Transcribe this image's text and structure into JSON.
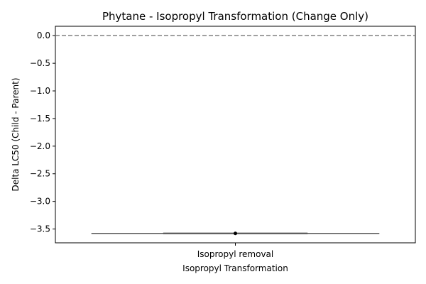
{
  "chart_data": {
    "type": "box",
    "title": "Phytane - Isopropyl Transformation (Change Only)",
    "xlabel": "Isopropyl Transformation",
    "ylabel": "Delta LC50 (Child - Parent)",
    "categories": [
      "Isopropyl removal"
    ],
    "y_ticks": [
      0.0,
      -0.5,
      -1.0,
      -1.5,
      -2.0,
      -2.5,
      -3.0,
      -3.5
    ],
    "y_tick_labels": [
      "0.0",
      "−0.5",
      "−1.0",
      "−1.5",
      "−2.0",
      "−2.5",
      "−3.0",
      "−3.5"
    ],
    "ylim": [
      -3.75,
      0.17
    ],
    "reference_line": {
      "y": 0.0,
      "style": "dashed",
      "color": "#808080"
    },
    "series": [
      {
        "category": "Isopropyl removal",
        "min": -3.58,
        "q1": -3.58,
        "median": -3.58,
        "q3": -3.58,
        "max": -3.58,
        "points": [
          -3.58
        ]
      }
    ],
    "box_color": "#595959",
    "point_color": "#000000",
    "grid": false
  }
}
